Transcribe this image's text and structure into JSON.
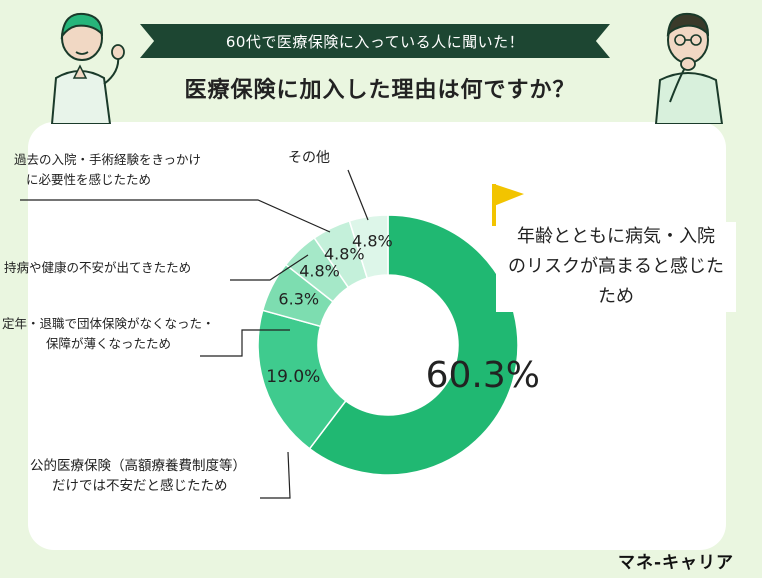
{
  "header": {
    "banner": "60代で医療保険に入っている人に聞いた！",
    "question": "医療保険に加入した理由は何ですか？"
  },
  "callout": {
    "line1": "年齢とともに病気・入院",
    "line2": "のリスクが高まると感じた",
    "line3": "ため"
  },
  "labels": {
    "public_l1": "公的医療保険（高額療養費制度等）",
    "public_l2": "だけでは不安だと感じたため",
    "retire_l1": "定年・退職で団体保険がなくなった・",
    "retire_l2": "保障が薄くなったため",
    "chronic": "持病や健康の不安が出てきたため",
    "hospital_l1": "過去の入院・手術経験をきっかけ",
    "hospital_l2": "に必要性を感じたため",
    "other": "その他"
  },
  "brand": "マネ-キャリア",
  "colors": {
    "page_bg": "#eaf6e0",
    "banner": "#1d4632",
    "slice_1": "#20b872",
    "slice_2": "#3fcb8e",
    "slice_3": "#7dddb0",
    "slice_4": "#a5e8c8",
    "slice_5": "#c4f0da",
    "slice_6": "#ddf6e9",
    "flag": "#f2c400"
  },
  "chart_data": {
    "type": "pie",
    "donut": true,
    "start_angle": "12 o'clock, clockwise",
    "slices": [
      {
        "label": "年齢とともに病気・入院のリスクが高まると感じたため",
        "value": 60.3,
        "display": "60.3%"
      },
      {
        "label": "公的医療保険（高額療養費制度等）だけでは不安だと感じたため",
        "value": 19.0,
        "display": "19.0%"
      },
      {
        "label": "定年・退職で団体保険がなくなった・保障が薄くなったため",
        "value": 6.3,
        "display": "6.3%"
      },
      {
        "label": "持病や健康の不安が出てきたため",
        "value": 4.8,
        "display": "4.8%"
      },
      {
        "label": "過去の入院・手術経験をきっかけに必要性を感じたため",
        "value": 4.8,
        "display": "4.8%"
      },
      {
        "label": "その他",
        "value": 4.8,
        "display": "4.8%"
      }
    ]
  }
}
